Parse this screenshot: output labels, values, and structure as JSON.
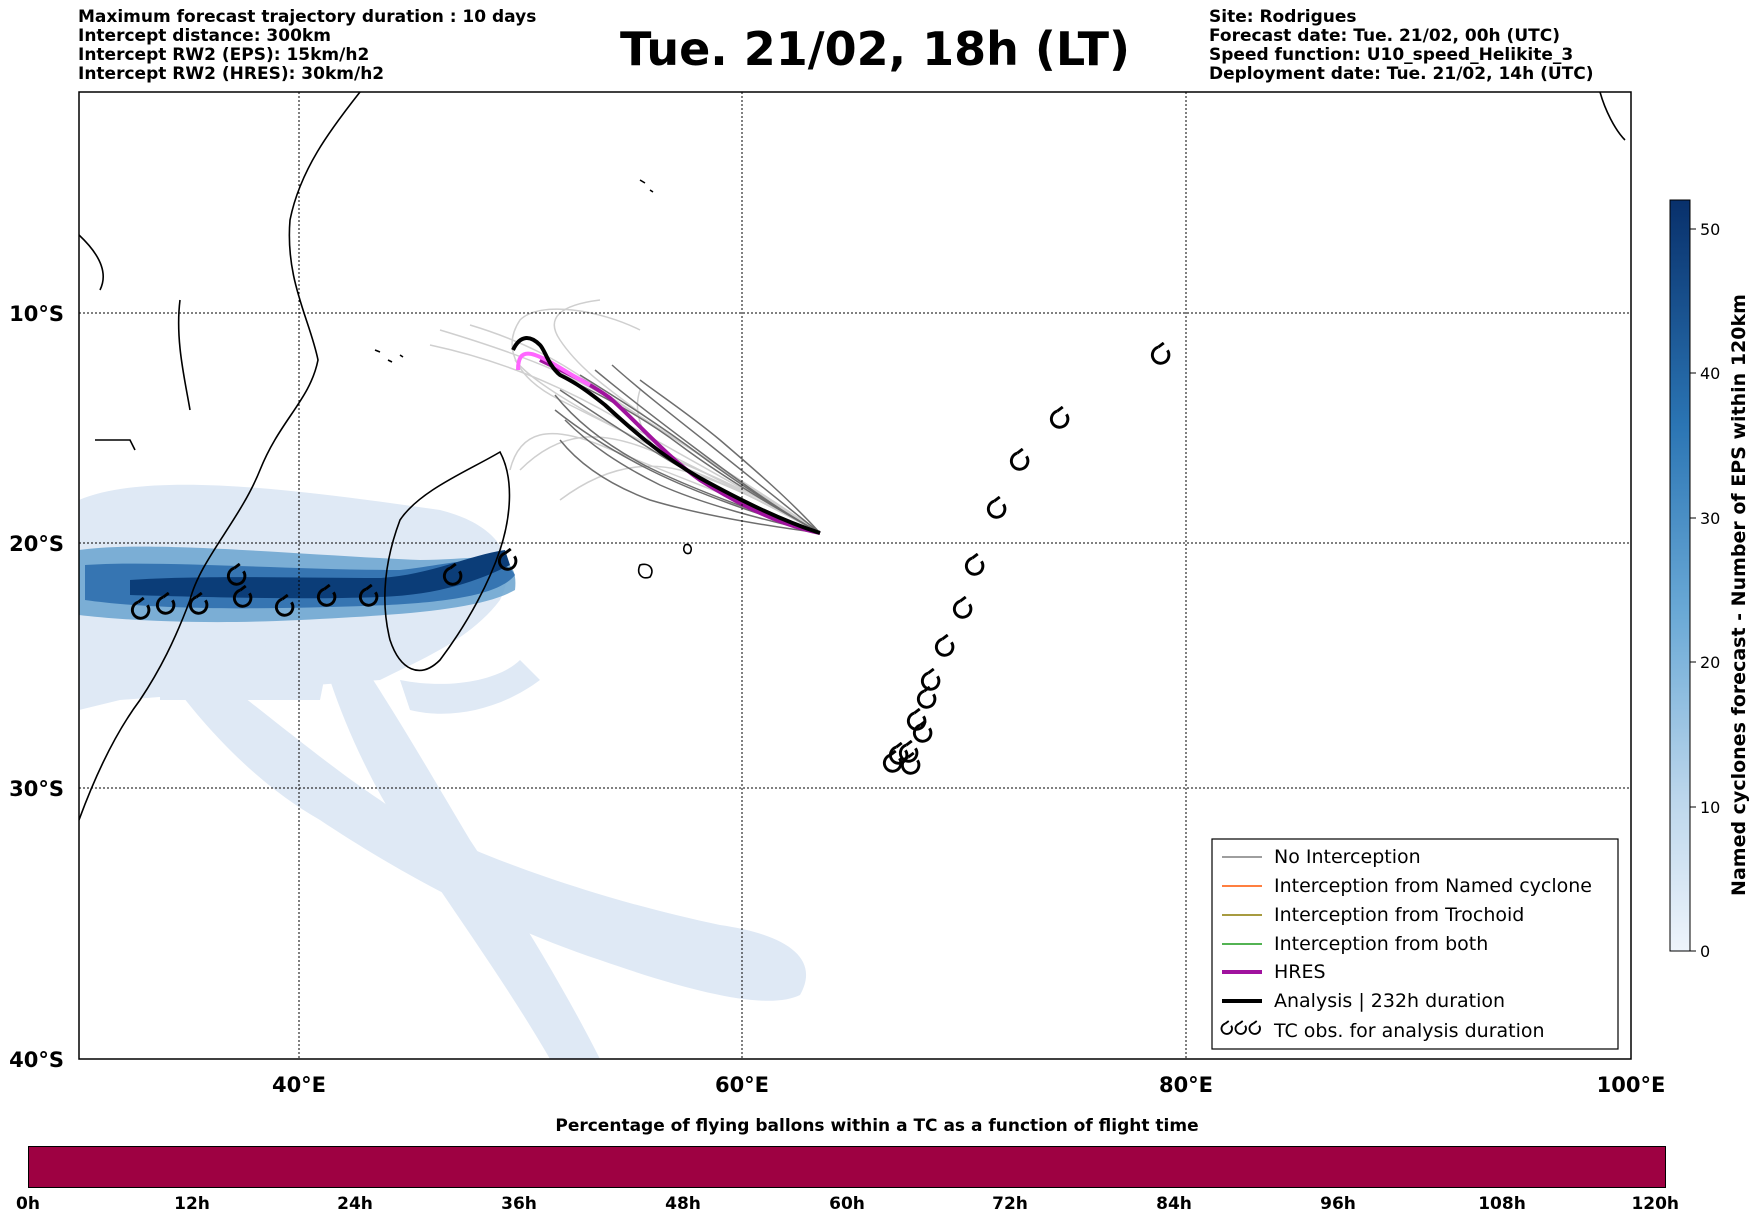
{
  "header": {
    "left": [
      "Maximum forecast trajectory duration : 10 days",
      "Intercept distance: 300km",
      "Intercept RW2 (EPS):  15km/h2",
      "Intercept RW2 (HRES): 30km/h2"
    ],
    "title": "Tue. 21/02, 18h (LT)",
    "right": [
      "Site: Rodrigues",
      "Forecast date: Tue. 21/02, 00h (UTC)",
      "Speed function: U10_speed_Helikite_3",
      "Deployment date: Tue. 21/02, 14h (UTC)"
    ]
  },
  "map": {
    "lon_ticks": [
      "40°E",
      "60°E",
      "80°E",
      "100°E"
    ],
    "lat_ticks": [
      "10°S",
      "20°S",
      "30°S",
      "40°S"
    ],
    "colors": {
      "eps_spread": "#dfe9f5",
      "eps_mid": "#6aa3cf",
      "eps_core": "#0b3d78",
      "ensemble_dark": "#6e6e6e",
      "ensemble_light": "#cfcfcf",
      "hres": "#a0129e",
      "hres_start": "#ff66ff",
      "analysis": "#000000"
    },
    "tc_obs_symbol": "tropical-cyclone-icon"
  },
  "legend": {
    "items": [
      {
        "label": "No Interception",
        "color": "#7f7f7f",
        "style": "thin"
      },
      {
        "label": "Interception from Named cyclone",
        "color": "#ff5500",
        "style": "thin"
      },
      {
        "label": "Interception from Trochoid",
        "color": "#8a7a00",
        "style": "thin"
      },
      {
        "label": "Interception from both",
        "color": "#1a9a1a",
        "style": "thin"
      },
      {
        "label": "HRES",
        "color": "#a0129e",
        "style": "thick"
      },
      {
        "label": "Analysis | 232h duration",
        "color": "#000000",
        "style": "thick"
      },
      {
        "label": "TC obs. for analysis duration",
        "color": "#000000",
        "style": "symbol"
      }
    ]
  },
  "colorbar": {
    "label": "Named cyclones forecast - Number of EPS within 120km",
    "ticks": [
      "0",
      "10",
      "20",
      "30",
      "40",
      "50"
    ],
    "range": [
      0,
      52
    ]
  },
  "flight_time_bar": {
    "title": "Percentage of flying ballons within a TC as a function of flight time",
    "color": "#9e0142",
    "ticks": [
      "0h",
      "12h",
      "24h",
      "36h",
      "48h",
      "60h",
      "72h",
      "84h",
      "96h",
      "108h",
      "120h"
    ]
  }
}
